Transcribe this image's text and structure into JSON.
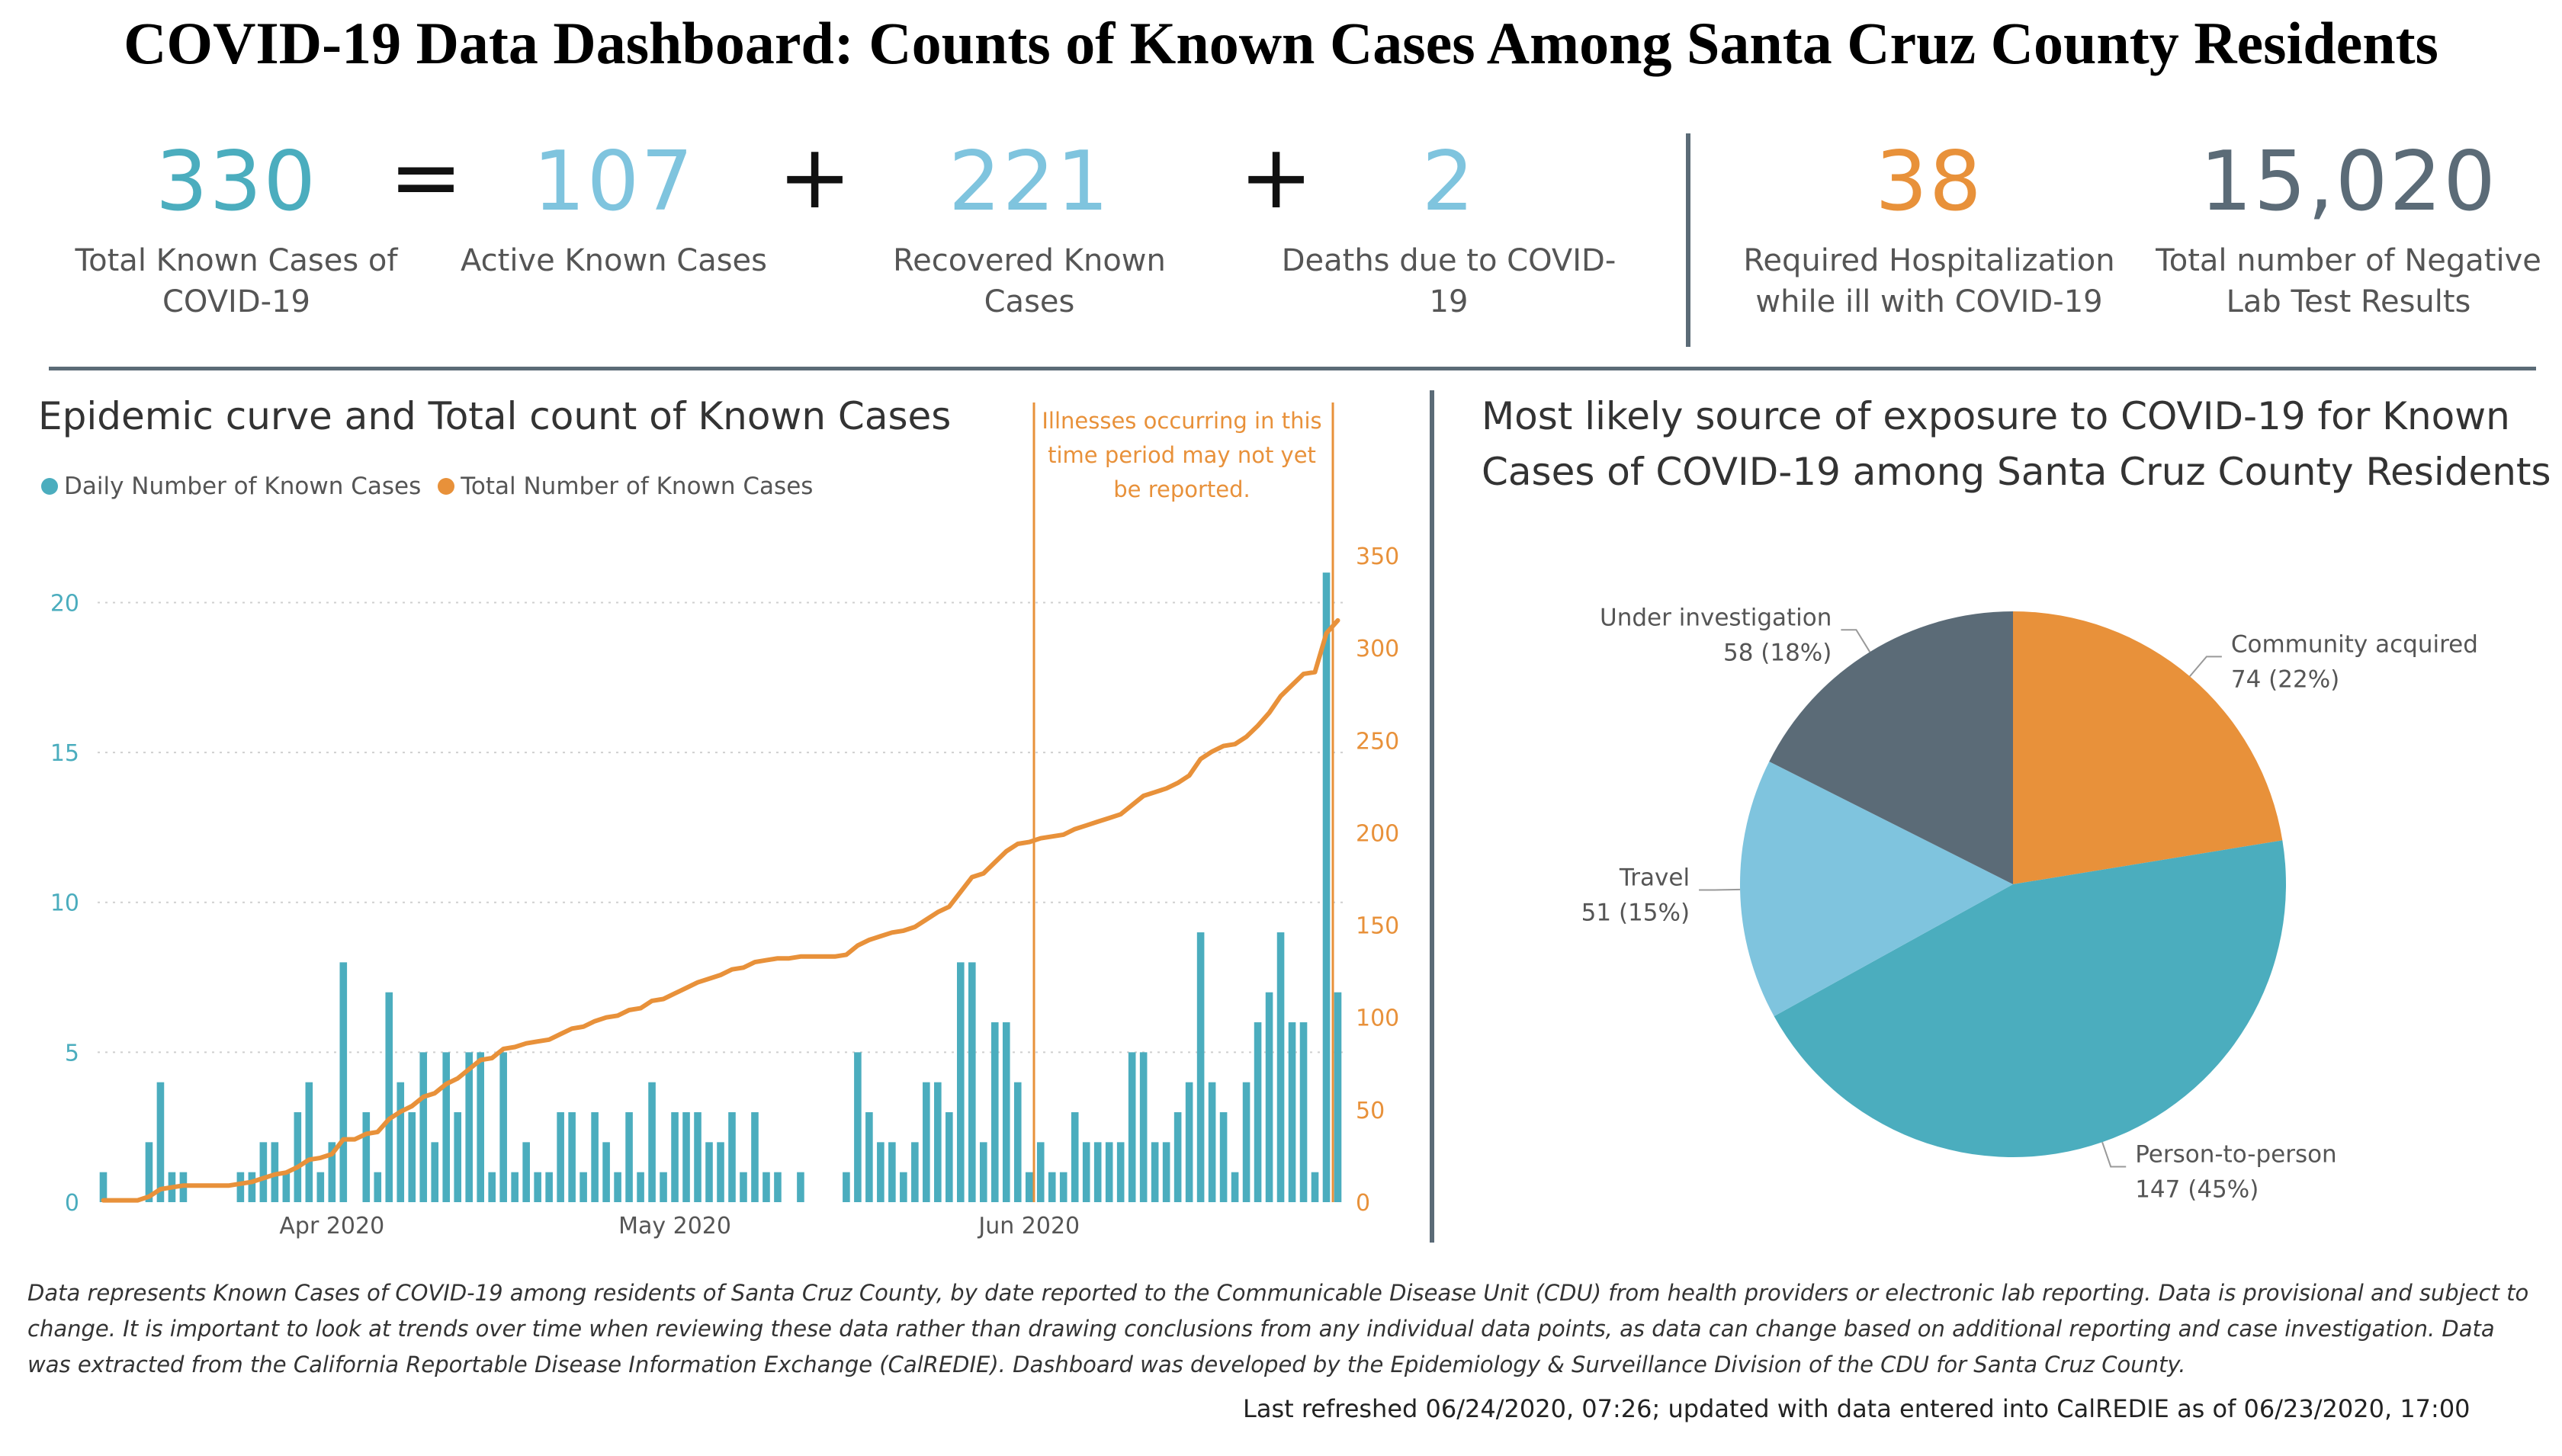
{
  "title": "COVID-19 Data Dashboard: Counts of Known Cases Among Santa Cruz County Residents",
  "kpis": {
    "total": {
      "value": "330",
      "label_line1": "Total Known Cases of",
      "label_line2": "COVID-19"
    },
    "equals": "=",
    "active": {
      "value": "107",
      "label": "Active Known Cases"
    },
    "plus1": "+",
    "recovered": {
      "value": "221",
      "label": "Recovered Known Cases"
    },
    "plus2": "+",
    "deaths": {
      "value": "2",
      "label": "Deaths due to COVID-19"
    },
    "hospital": {
      "value": "38",
      "label_line1": "Required Hospitalization",
      "label_line2": "while ill with COVID-19"
    },
    "negative": {
      "value": "15,020",
      "label_line1": "Total number of Negative",
      "label_line2": "Lab Test Results"
    }
  },
  "colors": {
    "teal": "#4badbe",
    "light_blue": "#7fc4de",
    "orange": "#e8913a",
    "slate": "#5b6b77"
  },
  "epi": {
    "title": "Epidemic curve and Total count of Known Cases",
    "legend_daily": "Daily Number of Known Cases",
    "legend_total": "Total Number of Known Cases",
    "annotation_line1": "Illnesses occurring in this",
    "annotation_line2": "time period may not yet",
    "annotation_line3": "be reported."
  },
  "pie": {
    "title_line1": "Most likely source of exposure to COVID-19 for Known",
    "title_line2": "Cases of COVID-19 among Santa Cruz County Residents"
  },
  "footnote": "Data represents Known Cases of COVID-19 among residents of Santa Cruz County, by date reported to the Communicable Disease Unit (CDU) from health providers or electronic lab reporting.  Data is provisional and subject to change.  It is important to look at trends over time when reviewing these data rather than drawing conclusions from any individual data points, as data can change based on additional reporting and case investigation.  Data was extracted from the California Reportable Disease Information Exchange (CalREDIE).  Dashboard was developed by the Epidemiology & Surveillance Division of the CDU for Santa Cruz County.",
  "refreshed": "Last refreshed 06/24/2020, 07:26; updated with data entered into CalREDIE as of 06/23/2020, 17:00",
  "chart_data": [
    {
      "type": "bar",
      "title": "Epidemic curve and Total count of Known Cases",
      "x_labels": [
        "Apr 2020",
        "May 2020",
        "Jun 2020"
      ],
      "x_label_day_index": [
        20,
        50,
        81
      ],
      "y_left_ticks": [
        0,
        5,
        10,
        15,
        20
      ],
      "ylim_left": [
        0,
        22.3
      ],
      "y_right_ticks": [
        0,
        50,
        100,
        150,
        200,
        250,
        300,
        350
      ],
      "ylim_right": [
        0,
        362
      ],
      "grid": true,
      "legend_placement": "top-left",
      "series": [
        {
          "name": "Daily Number of Known Cases",
          "axis": "left",
          "kind": "bar",
          "values": [
            1,
            0,
            0,
            0,
            2,
            4,
            1,
            1,
            0,
            0,
            0,
            0,
            1,
            1,
            2,
            2,
            1,
            3,
            4,
            1,
            2,
            8,
            0,
            3,
            1,
            7,
            4,
            3,
            5,
            2,
            5,
            3,
            5,
            5,
            1,
            5,
            1,
            2,
            1,
            1,
            3,
            3,
            1,
            3,
            2,
            1,
            3,
            1,
            4,
            1,
            3,
            3,
            3,
            2,
            2,
            3,
            1,
            3,
            1,
            1,
            0,
            1,
            0,
            0,
            0,
            1,
            5,
            3,
            2,
            2,
            1,
            2,
            4,
            4,
            3,
            8,
            8,
            2,
            6,
            6,
            4,
            1,
            2,
            1,
            1,
            3,
            2,
            2,
            2,
            2,
            5,
            5,
            2,
            2,
            3,
            4,
            9,
            4,
            3,
            1,
            4,
            6,
            7,
            9,
            6,
            6,
            1,
            21,
            7
          ]
        },
        {
          "name": "Total Number of Known Cases",
          "axis": "right",
          "kind": "line",
          "values": [
            1,
            1,
            1,
            1,
            3,
            7,
            8,
            9,
            9,
            9,
            9,
            9,
            10,
            11,
            13,
            15,
            16,
            19,
            23,
            24,
            26,
            34,
            34,
            37,
            38,
            45,
            49,
            52,
            57,
            59,
            64,
            67,
            72,
            77,
            78,
            83,
            84,
            86,
            87,
            88,
            91,
            94,
            95,
            98,
            100,
            101,
            104,
            105,
            109,
            110,
            113,
            116,
            119,
            121,
            123,
            126,
            127,
            130,
            131,
            132,
            132,
            133,
            133,
            133,
            133,
            134,
            139,
            142,
            144,
            146,
            147,
            149,
            153,
            157,
            160,
            168,
            176,
            178,
            184,
            190,
            194,
            195,
            197,
            198,
            199,
            202,
            204,
            206,
            208,
            210,
            215,
            220,
            222,
            224,
            227,
            231,
            240,
            244,
            247,
            248,
            252,
            258,
            265,
            274,
            280,
            286,
            287,
            308,
            315
          ]
        }
      ]
    },
    {
      "type": "pie",
      "title": "Most likely source of exposure to COVID-19 for Known Cases of COVID-19 among Santa Cruz County Residents",
      "slices": [
        {
          "label": "Community acquired",
          "value": 74,
          "pct": "22%",
          "color": "#e8913a"
        },
        {
          "label": "Person-to-person",
          "value": 147,
          "pct": "45%",
          "color": "#4badbe"
        },
        {
          "label": "Travel",
          "value": 51,
          "pct": "15%",
          "color": "#7fc4de"
        },
        {
          "label": "Under investigation",
          "value": 58,
          "pct": "18%",
          "color": "#5b6b77"
        }
      ]
    }
  ]
}
